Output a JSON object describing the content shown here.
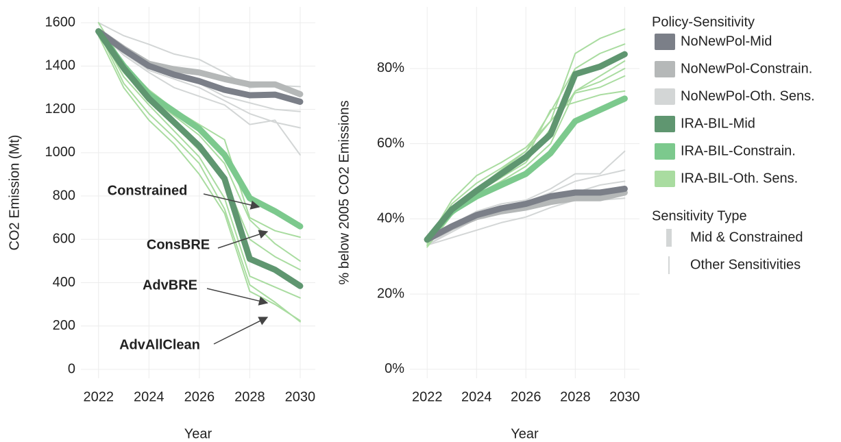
{
  "chart_data": [
    {
      "type": "line",
      "y_label": "CO2 Emission (Mt)",
      "x_label": "Year",
      "x": [
        2022,
        2023,
        2024,
        2025,
        2026,
        2027,
        2028,
        2029,
        2030
      ],
      "xlim": [
        2021.3,
        2030.6
      ],
      "xticks": [
        2022,
        2024,
        2026,
        2028,
        2030
      ],
      "ylim": [
        -41,
        1673
      ],
      "yticks": [
        0,
        200,
        400,
        600,
        800,
        1000,
        1200,
        1400,
        1600
      ],
      "grid": true,
      "series": [
        {
          "name": "NoNewPol-Mid",
          "color": "#7b7f88",
          "values": [
            1560,
            1475,
            1400,
            1360,
            1330,
            1290,
            1265,
            1268,
            1235
          ]
        },
        {
          "name": "NoNewPol-Constrain.",
          "color": "#b5b8b8",
          "values": [
            1560,
            1480,
            1410,
            1385,
            1370,
            1340,
            1315,
            1315,
            1270
          ]
        },
        {
          "name": "NoNewPol-Oth. Sens.",
          "color": "#d3d6d6",
          "lines": [
            [
              1600,
              1540,
              1500,
              1455,
              1430,
              1370,
              1300,
              1310,
              1305
            ],
            [
              1560,
              1470,
              1390,
              1350,
              1320,
              1260,
              1230,
              1200,
              1190
            ],
            [
              1560,
              1460,
              1380,
              1340,
              1300,
              1240,
              1180,
              1140,
              1115
            ],
            [
              1560,
              1450,
              1370,
              1300,
              1260,
              1220,
              1130,
              1150,
              990
            ]
          ]
        },
        {
          "name": "IRA-BIL-Mid",
          "color": "#5f9670",
          "values": [
            1560,
            1390,
            1250,
            1140,
            1030,
            880,
            510,
            460,
            385
          ]
        },
        {
          "name": "IRA-BIL-Constrain.",
          "color": "#7cc98d",
          "values": [
            1560,
            1400,
            1270,
            1190,
            1110,
            990,
            790,
            730,
            660
          ]
        },
        {
          "name": "IRA-BIL-Oth. Sens.",
          "color": "#a9dca0",
          "lines": [
            [
              1600,
              1410,
              1290,
              1200,
              1130,
              1060,
              700,
              640,
              610
            ],
            [
              1560,
              1390,
              1260,
              1170,
              1080,
              950,
              690,
              580,
              500
            ],
            [
              1560,
              1370,
              1240,
              1130,
              1010,
              880,
              600,
              520,
              460
            ],
            [
              1560,
              1350,
              1220,
              1100,
              980,
              790,
              430,
              380,
              330
            ],
            [
              1560,
              1320,
              1180,
              1070,
              950,
              740,
              390,
              310,
              220
            ],
            [
              1540,
              1300,
              1150,
              1040,
              900,
              720,
              360,
              300,
              225
            ]
          ]
        }
      ],
      "annotations": [
        "Constrained",
        "ConsBRE",
        "AdvBRE",
        "AdvAllClean"
      ],
      "legend": {
        "title": "Policy-Sensitivity",
        "type_title": "Sensitivity Type",
        "types": [
          "Mid & Constrained",
          "Other Sensitivities"
        ]
      }
    },
    {
      "type": "line",
      "y_label": "% below 2005 CO2 Emissions",
      "x_label": "Year",
      "x": [
        2022,
        2023,
        2024,
        2025,
        2026,
        2027,
        2028,
        2029,
        2030
      ],
      "xlim": [
        2021.3,
        2030.6
      ],
      "xticks": [
        2022,
        2024,
        2026,
        2028,
        2030
      ],
      "ylim": [
        -2.4,
        96.4
      ],
      "yticks": [
        {
          "value": 0,
          "label": "0%"
        },
        {
          "value": 20,
          "label": "20%"
        },
        {
          "value": 40,
          "label": "40%"
        },
        {
          "value": 60,
          "label": "60%"
        },
        {
          "value": 80,
          "label": "80%"
        }
      ],
      "grid": true,
      "series": [
        {
          "name": "NoNewPol-Mid",
          "color": "#7b7f88",
          "values": [
            34.5,
            38,
            41,
            42.8,
            44,
            46,
            47,
            47,
            48
          ]
        },
        {
          "name": "NoNewPol-Constrain.",
          "color": "#b5b8b8",
          "values": [
            34.5,
            37.8,
            40.5,
            42,
            43,
            44.5,
            45.5,
            45.5,
            47
          ]
        },
        {
          "name": "NoNewPol-Oth. Sens.",
          "color": "#d3d6d6",
          "lines": [
            [
              34.5,
              38.5,
              42,
              44,
              45,
              48,
              52,
              52,
              58
            ],
            [
              33,
              37,
              40,
              42.5,
              44.5,
              47,
              50,
              51.5,
              53
            ],
            [
              33,
              36.5,
              40,
              41.5,
              43,
              45,
              47,
              49,
              50
            ],
            [
              33,
              35,
              37,
              39,
              40.5,
              43,
              45,
              45,
              45.5
            ]
          ]
        },
        {
          "name": "IRA-BIL-Mid",
          "color": "#5f9670",
          "values": [
            34.5,
            42.5,
            47.5,
            52,
            56.5,
            62.5,
            78.5,
            80.5,
            83.8
          ]
        },
        {
          "name": "IRA-BIL-Constrain.",
          "color": "#7cc98d",
          "values": [
            34.5,
            42,
            46,
            49,
            52,
            57.5,
            66,
            69,
            72
          ]
        },
        {
          "name": "IRA-BIL-Oth. Sens.",
          "color": "#a9dca0",
          "lines": [
            [
              34,
              45,
              51.5,
              55,
              59,
              66,
              73.5,
              75,
              78
            ],
            [
              34,
              44,
              49.5,
              53.5,
              58,
              66,
              84,
              88,
              90.5
            ],
            [
              33,
              43,
              48,
              53,
              58,
              68.5,
              80,
              84,
              86.5
            ],
            [
              33,
              42.5,
              47,
              51,
              56,
              69,
              71,
              73,
              74
            ],
            [
              33.5,
              42,
              47,
              51,
              55,
              64,
              74,
              76.5,
              80
            ],
            [
              32.5,
              41,
              46.5,
              50,
              54,
              60,
              74,
              78,
              82
            ]
          ]
        }
      ]
    }
  ]
}
